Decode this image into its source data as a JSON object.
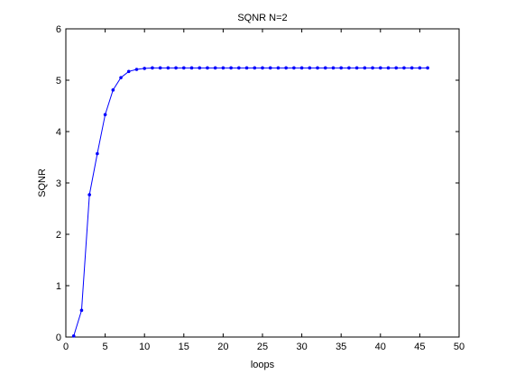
{
  "chart_data": {
    "type": "line",
    "title": "SQNR N=2",
    "xlabel": "loops",
    "ylabel": "SQNR",
    "xlim": [
      0,
      50
    ],
    "ylim": [
      0,
      6
    ],
    "xticks": [
      "0",
      "5",
      "10",
      "15",
      "20",
      "25",
      "30",
      "35",
      "40",
      "45",
      "50"
    ],
    "yticks": [
      "0",
      "1",
      "2",
      "3",
      "4",
      "5",
      "6"
    ],
    "grid": false,
    "legend": "none",
    "series": [
      {
        "color": "#0000ff",
        "marker": "point",
        "x": [
          1,
          2,
          3,
          4,
          5,
          6,
          7,
          8,
          9,
          10,
          11,
          12,
          13,
          14,
          15,
          16,
          17,
          18,
          19,
          20,
          21,
          22,
          23,
          24,
          25,
          26,
          27,
          28,
          29,
          30,
          31,
          32,
          33,
          34,
          35,
          36,
          37,
          38,
          39,
          40,
          41,
          42,
          43,
          44,
          45,
          46
        ],
        "y": [
          0.02,
          0.52,
          2.77,
          3.57,
          4.33,
          4.81,
          5.05,
          5.17,
          5.21,
          5.23,
          5.24,
          5.24,
          5.24,
          5.24,
          5.24,
          5.24,
          5.24,
          5.24,
          5.24,
          5.24,
          5.24,
          5.24,
          5.24,
          5.24,
          5.24,
          5.24,
          5.24,
          5.24,
          5.24,
          5.24,
          5.24,
          5.24,
          5.24,
          5.24,
          5.24,
          5.24,
          5.24,
          5.24,
          5.24,
          5.24,
          5.24,
          5.24,
          5.24,
          5.24,
          5.24,
          5.24
        ]
      }
    ]
  }
}
